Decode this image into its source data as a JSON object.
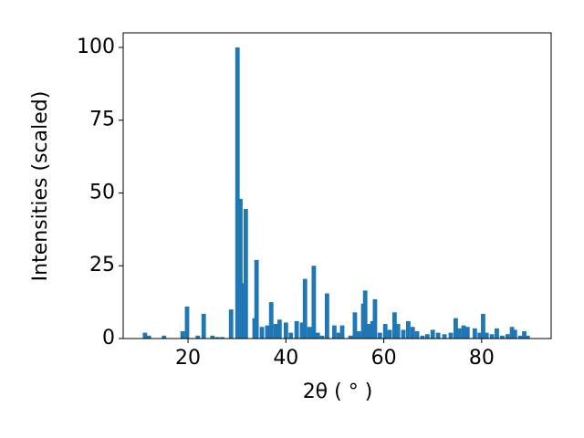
{
  "chart_data": {
    "type": "bar",
    "x_label": "2θ ( ° )",
    "y_label": "Intensities (scaled)",
    "color": "#1f77b4",
    "xlim": [
      6.75,
      94.2
    ],
    "ylim": [
      0,
      105
    ],
    "xticks": [
      20,
      40,
      60,
      80
    ],
    "yticks": [
      0,
      25,
      50,
      75,
      100
    ],
    "x": [
      11.2,
      12,
      15.1,
      18.9,
      19.8,
      22,
      23.2,
      25,
      26,
      27,
      28.8,
      30.1,
      30.7,
      31.2,
      31.8,
      33.6,
      34,
      35.1,
      36.2,
      37,
      37.9,
      38.7,
      40,
      41,
      42.2,
      43.3,
      43.9,
      44.8,
      45.7,
      46.5,
      47.4,
      48.4,
      49.9,
      50.8,
      51.5,
      53.2,
      54.1,
      54.9,
      55.8,
      56.2,
      56.9,
      57.7,
      58.2,
      59.2,
      60.3,
      61.2,
      62.2,
      62.9,
      64,
      65,
      65.9,
      66.8,
      67.9,
      68.9,
      70,
      71.1,
      72.4,
      73.7,
      74.7,
      75.4,
      76.3,
      77.1,
      78.6,
      79.6,
      80.3,
      81,
      82.1,
      83.1,
      84.2,
      85.3,
      86.2,
      86.8,
      87.9,
      88.7,
      89.4
    ],
    "values": [
      2,
      1,
      1,
      2.5,
      11,
      1,
      8.5,
      1,
      0.5,
      0.5,
      10,
      100,
      48,
      19,
      44.5,
      7,
      27,
      4,
      4.5,
      12.5,
      5,
      6.5,
      5.5,
      2,
      6,
      5.5,
      20.5,
      4,
      25,
      2,
      1,
      15.5,
      4.5,
      2,
      4.5,
      1,
      9,
      2.5,
      12,
      16.5,
      5,
      6,
      13.5,
      2,
      5,
      3,
      9,
      5,
      3,
      6,
      4,
      2.5,
      1,
      1.5,
      3,
      2,
      1.5,
      2,
      7,
      3.5,
      4.5,
      4,
      3.5,
      2,
      8.5,
      2,
      1.5,
      3.5,
      1,
      1.5,
      4,
      3,
      1,
      2.5,
      1
    ]
  }
}
